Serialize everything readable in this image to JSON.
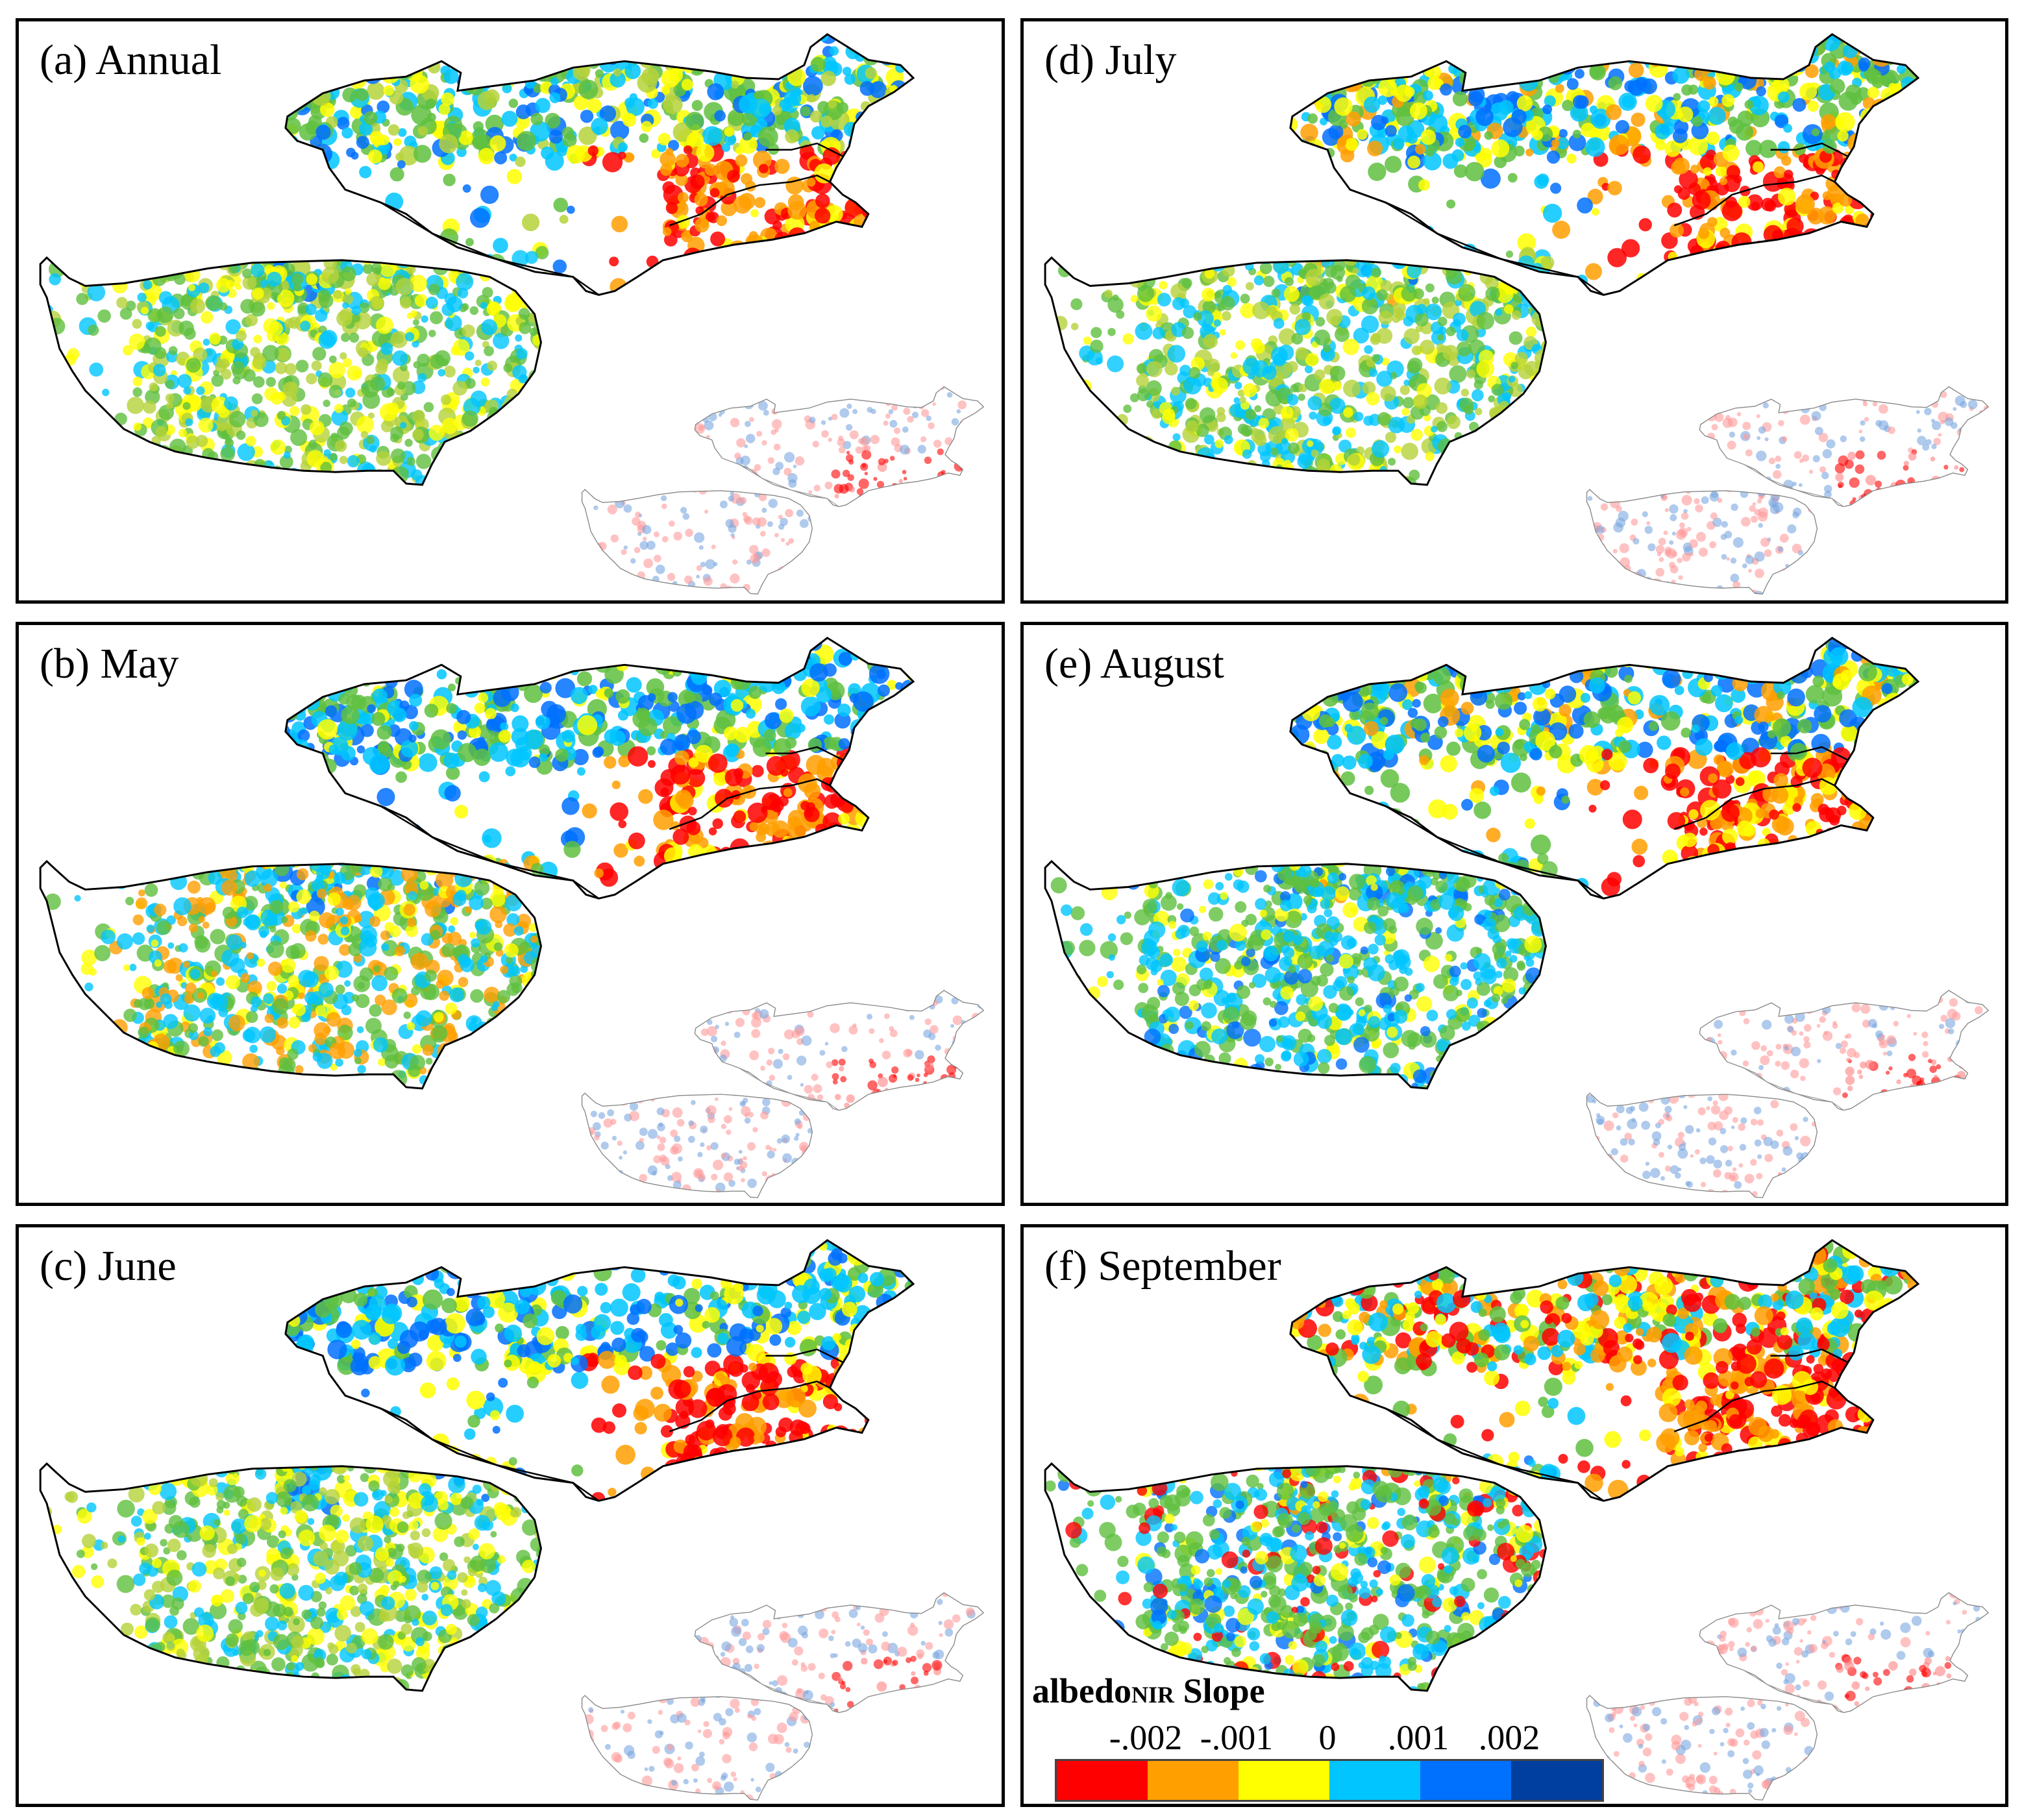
{
  "panels": [
    {
      "id": "a",
      "label": "(a) Annual",
      "pattern": "annual"
    },
    {
      "id": "d",
      "label": "(d) July",
      "pattern": "july"
    },
    {
      "id": "b",
      "label": "(b) May",
      "pattern": "may"
    },
    {
      "id": "e",
      "label": "(e) August",
      "pattern": "august"
    },
    {
      "id": "c",
      "label": "(c) June",
      "pattern": "june"
    },
    {
      "id": "f",
      "label": "(f) September",
      "pattern": "september"
    }
  ],
  "legend": {
    "title_main": "albedo",
    "title_sub": "NIR",
    "title_tail": " Slope",
    "tick_labels": [
      "-.002",
      "-.001",
      "0",
      ".001",
      ".002"
    ],
    "colors": [
      "#ff0000",
      "#ff9f00",
      "#ffff00",
      "#00c5ff",
      "#0070ff",
      "#003f9f"
    ]
  },
  "palette": {
    "green": "#5fbf3f",
    "yellowgreen": "#b5d23a",
    "border": "#000000"
  }
}
